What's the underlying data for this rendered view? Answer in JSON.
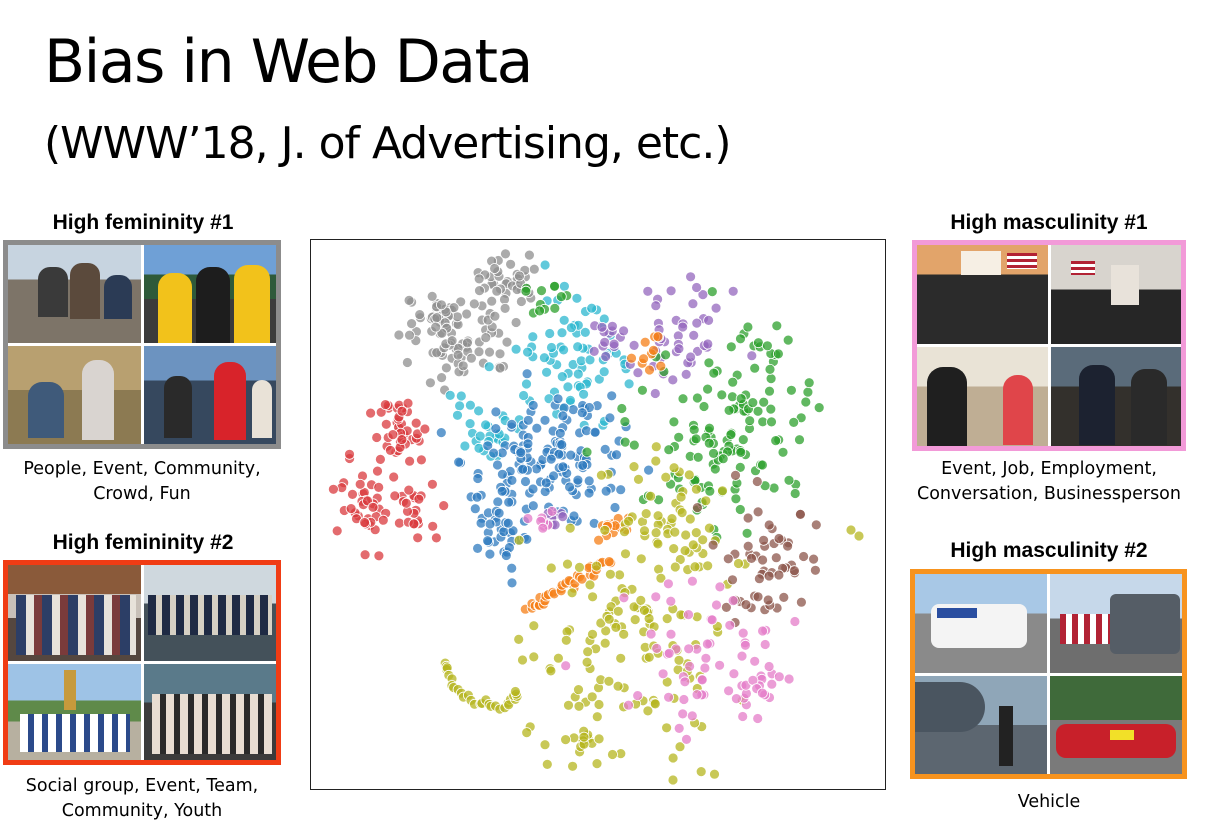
{
  "slide": {
    "title": "Bias in Web Data",
    "subtitle": "(WWW’18, J. of Advertising, etc.)"
  },
  "panels": {
    "fem1": {
      "heading": "High femininity #1",
      "caption_lines": [
        "People, Event, Community,",
        "Crowd, Fun"
      ],
      "border_color": "#8c8c8c"
    },
    "fem2": {
      "heading": "High femininity #2",
      "caption_lines": [
        "Social group, Event, Team,",
        "Community, Youth"
      ],
      "border_color": "#f03c14"
    },
    "masc1": {
      "heading": "High masculinity #1",
      "caption_lines": [
        "Event, Job, Employment,",
        "Conversation, Businessperson"
      ],
      "border_color": "#f29ad8"
    },
    "masc2": {
      "heading": "High masculinity #2",
      "caption_lines": [
        "Vehicle"
      ],
      "border_color": "#f7931e"
    }
  },
  "scatter": {
    "cluster_colors": {
      "gray": "#8f8f8f",
      "red": "#d93a3e",
      "cyan": "#2cb7cf",
      "blue": "#2f7bbf",
      "purple": "#9467bd",
      "green": "#2ca02c",
      "olive": "#b5b51f",
      "orange": "#f57f17",
      "pink": "#e47cc8",
      "brown": "#8c564b"
    }
  }
}
